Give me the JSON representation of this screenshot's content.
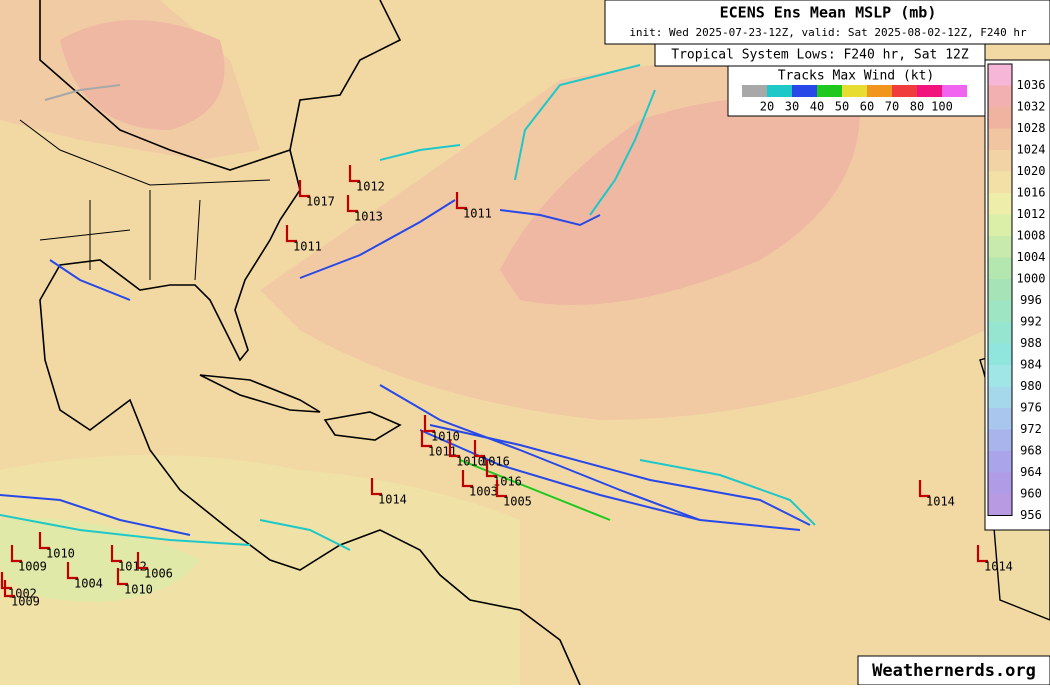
{
  "header": {
    "title": "ECENS Ens Mean MSLP (mb)",
    "subtitle": "init: Wed 2025-07-23-12Z, valid: Sat 2025-08-02-12Z, F240 hr"
  },
  "legend": {
    "title": "Tropical System Lows: F240 hr, Sat 12Z",
    "tracks_title": "Tracks Max Wind (kt)",
    "wind_colors": [
      "#a8a8a8",
      "#1ec8c8",
      "#2848e8",
      "#1ec81e",
      "#e6dc32",
      "#f0961e",
      "#f03c3c",
      "#f0147c",
      "#f064f0"
    ],
    "wind_labels": [
      20,
      30,
      40,
      50,
      60,
      70,
      80,
      100
    ]
  },
  "colorbar": {
    "labels": [
      1036,
      1032,
      1028,
      1024,
      1020,
      1016,
      1012,
      1008,
      1004,
      1000,
      996,
      992,
      988,
      984,
      980,
      976,
      972,
      968,
      964,
      960,
      956
    ],
    "colors": [
      "#f6b6d8",
      "#f2b0b0",
      "#efb39f",
      "#f1c4a2",
      "#f2d3a5",
      "#f2e0a6",
      "#eeeeaa",
      "#dcefa8",
      "#c8eaac",
      "#b4e6b0",
      "#a6e4b8",
      "#9ee5c4",
      "#96e5d0",
      "#90e5dc",
      "#a0e6e6",
      "#a6d8ec",
      "#a8c6ee",
      "#a9b4ec",
      "#aaa4ea",
      "#b09ce6",
      "#b89ae2"
    ]
  },
  "lows": [
    1012,
    1017,
    1013,
    1011,
    1011,
    1010,
    1011,
    1010,
    1016,
    1016,
    1003,
    1005,
    1014,
    1014,
    1014,
    1010,
    1009,
    1004,
    1012,
    1006,
    1010,
    1002,
    1009
  ],
  "credit": "Weathernerds.org"
}
